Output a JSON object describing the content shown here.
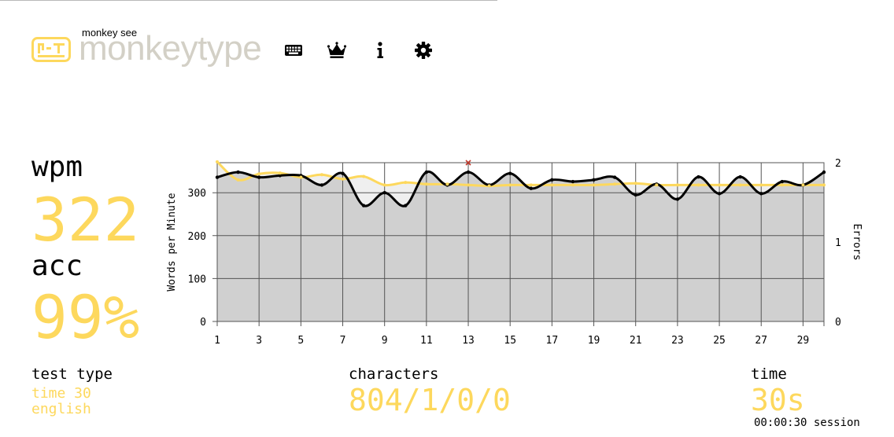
{
  "header": {
    "logo_small": "monkey see",
    "logo_main": "monkeytype",
    "nav": [
      {
        "name": "keyboard-icon"
      },
      {
        "name": "crown-icon"
      },
      {
        "name": "info-icon"
      },
      {
        "name": "gear-icon"
      }
    ]
  },
  "stats": {
    "wpm_label": "wpm",
    "wpm_value": "322",
    "acc_label": "acc",
    "acc_value": "99%"
  },
  "info": {
    "test_type_label": "test type",
    "test_type_mode": "time 30",
    "test_type_language": "english",
    "characters_label": "characters",
    "characters_value": "804/1/0/0",
    "time_label": "time",
    "time_value": "30s",
    "session": "00:00:30 session"
  },
  "colors": {
    "accent": "#fdd85d",
    "wpm_line": "#000000",
    "error_mark": "#c0392b",
    "plot_fill": "#d0d0d0",
    "logo_text": "#d3d0c6"
  },
  "chart_data": {
    "type": "line",
    "ylabel": "Words per Minute",
    "y2label": "Errors",
    "x": [
      1,
      2,
      3,
      4,
      5,
      6,
      7,
      8,
      9,
      10,
      11,
      12,
      13,
      14,
      15,
      16,
      17,
      18,
      19,
      20,
      21,
      22,
      23,
      24,
      25,
      26,
      27,
      28,
      29,
      30
    ],
    "xticks": [
      1,
      3,
      5,
      7,
      9,
      11,
      13,
      15,
      17,
      19,
      21,
      23,
      25,
      27,
      29
    ],
    "xlim": [
      1,
      30
    ],
    "ylim": [
      0,
      370
    ],
    "yticks": [
      0,
      100,
      200,
      300
    ],
    "y2lim": [
      0,
      2
    ],
    "y2ticks": [
      0,
      1,
      2
    ],
    "grid": true,
    "series": [
      {
        "color": "#000000",
        "values": [
          336,
          348,
          336,
          340,
          340,
          318,
          345,
          270,
          300,
          270,
          348,
          318,
          348,
          318,
          345,
          310,
          330,
          326,
          330,
          336,
          295,
          320,
          285,
          337,
          298,
          337,
          298,
          326,
          318,
          348
        ]
      },
      {
        "color": "#fdd85d",
        "values": [
          372,
          330,
          344,
          346,
          336,
          342,
          332,
          338,
          318,
          324,
          320,
          320,
          318,
          316,
          318,
          318,
          318,
          318,
          318,
          320,
          322,
          318,
          318,
          318,
          318,
          318,
          318,
          318,
          318,
          318
        ]
      }
    ],
    "errors": [
      {
        "x": 13,
        "count": 2
      }
    ]
  }
}
